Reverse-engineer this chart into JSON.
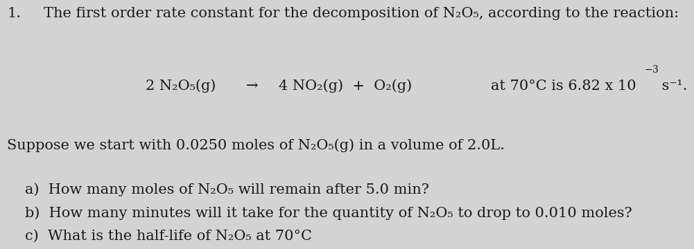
{
  "background_color": "#d3d3d3",
  "text_color": "#1a1a1a",
  "number": "1.",
  "line1": "The first order rate constant for the decomposition of N₂O₅, according to the reaction:",
  "reaction_left": "2 N₂O₅(g)",
  "reaction_arrow": "→",
  "reaction_right": "4 NO₂(g)  +  O₂(g)",
  "reaction_condition": "at 70°C is 6.82 x 10",
  "reaction_exp": "−3",
  "reaction_unit": " s⁻¹.",
  "suppose_line": "Suppose we start with 0.0250 moles of N₂O₅(g) in a volume of 2.0L.",
  "part_a": "a)  How many moles of N₂O₅ will remain after 5.0 min?",
  "part_b": "b)  How many minutes will it take for the quantity of N₂O₅ to drop to 0.010 moles?",
  "part_c": "c)  What is the half-life of N₂O₅ at 70°C",
  "font_size_main": 15.0,
  "font_family": "DejaVu Serif"
}
